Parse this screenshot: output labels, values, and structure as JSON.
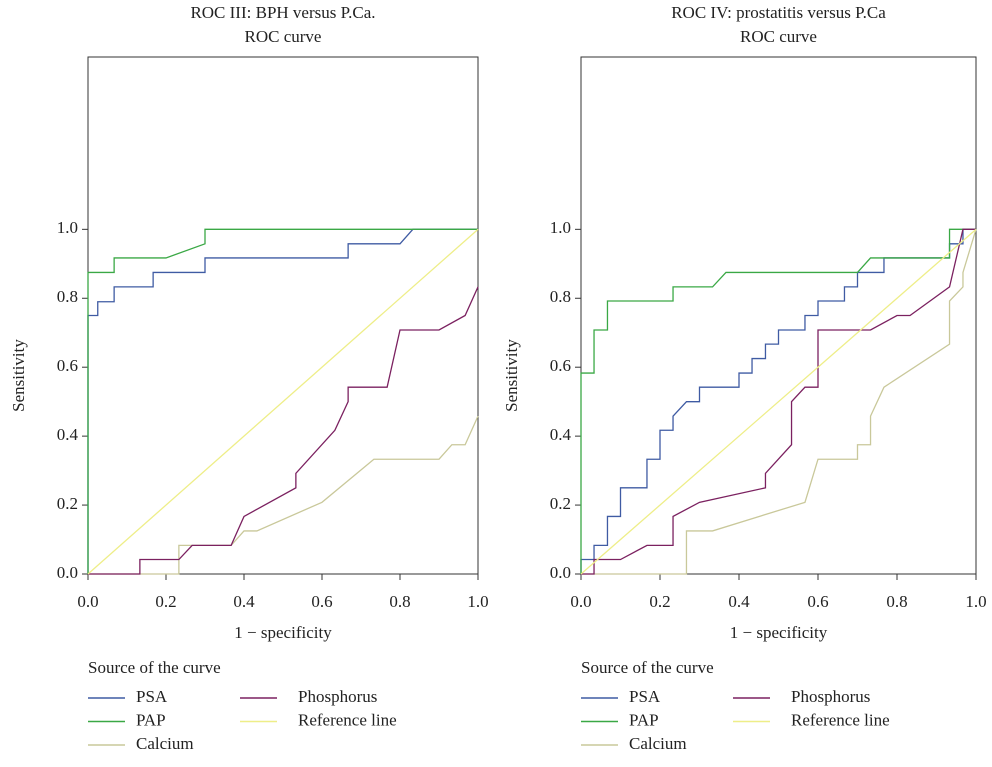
{
  "chart_data": [
    {
      "type": "line",
      "title": "ROC III: BPH versus P.Ca.",
      "subtitle": "ROC curve",
      "x_label": "1 − specificity",
      "y_label": "Sensitivity",
      "legend_title": "Source of the curve",
      "xlim": [
        0,
        1
      ],
      "ylim": [
        0,
        1.5
      ],
      "xticks": [
        {
          "value": 0,
          "label": "0.0"
        },
        0.2,
        0.4,
        0.6,
        0.8,
        {
          "value": 1,
          "label": "1.0"
        }
      ],
      "yticks": [
        {
          "value": 0,
          "label": "0.0"
        },
        0.2,
        0.4,
        0.6,
        0.8,
        {
          "value": 1,
          "label": "1.0"
        }
      ],
      "series": [
        {
          "name": "PSA",
          "color": "#3f5ba3",
          "x": [
            0,
            0,
            0.025,
            0.025,
            0.067,
            0.067,
            0.167,
            0.167,
            0.3,
            0.3,
            0.667,
            0.667,
            0.8,
            0.833,
            1
          ],
          "values": [
            0,
            0.75,
            0.75,
            0.79,
            0.79,
            0.833,
            0.833,
            0.875,
            0.875,
            0.917,
            0.917,
            0.958,
            0.958,
            1,
            1
          ]
        },
        {
          "name": "PAP",
          "color": "#3aa845",
          "x": [
            0,
            0,
            0.067,
            0.067,
            0.2,
            0.3,
            0.3,
            1
          ],
          "values": [
            0,
            0.875,
            0.875,
            0.917,
            0.917,
            0.958,
            1,
            1
          ]
        },
        {
          "name": "Calcium",
          "color": "#c9c89a",
          "x": [
            0,
            0.233,
            0.233,
            0.367,
            0.4,
            0.433,
            0.6,
            0.733,
            0.9,
            0.933,
            0.967,
            1
          ],
          "values": [
            0,
            0,
            0.083,
            0.083,
            0.125,
            0.125,
            0.208,
            0.333,
            0.333,
            0.375,
            0.375,
            0.458
          ]
        },
        {
          "name": "Phosphorus",
          "color": "#7b2160",
          "x": [
            0,
            0.133,
            0.133,
            0.233,
            0.267,
            0.367,
            0.4,
            0.533,
            0.533,
            0.633,
            0.667,
            0.667,
            0.767,
            0.8,
            0.9,
            0.967,
            1
          ],
          "values": [
            0,
            0,
            0.042,
            0.042,
            0.083,
            0.083,
            0.167,
            0.25,
            0.292,
            0.417,
            0.5,
            0.542,
            0.542,
            0.708,
            0.708,
            0.75,
            0.833
          ]
        },
        {
          "name": "Reference line",
          "color": "#eeee88",
          "x": [
            0,
            1
          ],
          "values": [
            0,
            1
          ]
        }
      ]
    },
    {
      "type": "line",
      "title": "ROC IV: prostatitis versus P.Ca",
      "subtitle": "ROC curve",
      "x_label": "1 − specificity",
      "y_label": "Sensitivity",
      "legend_title": "Source of the curve",
      "xlim": [
        0,
        1
      ],
      "ylim": [
        0,
        1.5
      ],
      "xticks": [
        {
          "value": 0,
          "label": "0.0"
        },
        0.2,
        0.4,
        0.6,
        0.8,
        {
          "value": 1,
          "label": "1.0"
        }
      ],
      "yticks": [
        {
          "value": 0,
          "label": "0.0"
        },
        0.2,
        0.4,
        0.6,
        0.8,
        {
          "value": 1,
          "label": "1.0"
        }
      ],
      "series": [
        {
          "name": "PSA",
          "color": "#3f5ba3",
          "x": [
            0,
            0,
            0.033,
            0.033,
            0.067,
            0.067,
            0.1,
            0.1,
            0.167,
            0.167,
            0.2,
            0.2,
            0.233,
            0.233,
            0.267,
            0.3,
            0.3,
            0.4,
            0.4,
            0.433,
            0.433,
            0.467,
            0.467,
            0.5,
            0.5,
            0.567,
            0.567,
            0.6,
            0.6,
            0.667,
            0.667,
            0.7,
            0.7,
            0.767,
            0.767,
            0.933,
            0.933,
            0.967,
            0.967,
            1
          ],
          "values": [
            0,
            0.042,
            0.042,
            0.083,
            0.083,
            0.167,
            0.167,
            0.25,
            0.25,
            0.333,
            0.333,
            0.417,
            0.417,
            0.458,
            0.5,
            0.5,
            0.542,
            0.542,
            0.583,
            0.583,
            0.625,
            0.625,
            0.667,
            0.667,
            0.708,
            0.708,
            0.75,
            0.75,
            0.792,
            0.792,
            0.833,
            0.833,
            0.875,
            0.875,
            0.917,
            0.917,
            0.958,
            0.958,
            1,
            1
          ]
        },
        {
          "name": "PAP",
          "color": "#3aa845",
          "x": [
            0,
            0,
            0.033,
            0.033,
            0.067,
            0.067,
            0.233,
            0.233,
            0.333,
            0.367,
            0.7,
            0.733,
            0.933,
            0.933,
            1
          ],
          "values": [
            0,
            0.583,
            0.583,
            0.708,
            0.708,
            0.792,
            0.792,
            0.833,
            0.833,
            0.875,
            0.875,
            0.917,
            0.917,
            1,
            1
          ]
        },
        {
          "name": "Calcium",
          "color": "#c9c89a",
          "x": [
            0,
            0.267,
            0.267,
            0.333,
            0.567,
            0.6,
            0.7,
            0.7,
            0.733,
            0.733,
            0.767,
            0.933,
            0.933,
            0.967,
            0.967,
            1
          ],
          "values": [
            0,
            0,
            0.125,
            0.125,
            0.208,
            0.333,
            0.333,
            0.375,
            0.375,
            0.458,
            0.542,
            0.667,
            0.792,
            0.833,
            0.875,
            1
          ]
        },
        {
          "name": "Phosphorus",
          "color": "#7b2160",
          "x": [
            0,
            0.033,
            0.033,
            0.1,
            0.167,
            0.233,
            0.233,
            0.3,
            0.467,
            0.467,
            0.533,
            0.533,
            0.567,
            0.6,
            0.6,
            0.733,
            0.8,
            0.833,
            0.933,
            0.967,
            1
          ],
          "values": [
            0,
            0,
            0.042,
            0.042,
            0.083,
            0.083,
            0.167,
            0.208,
            0.25,
            0.292,
            0.375,
            0.5,
            0.542,
            0.542,
            0.708,
            0.708,
            0.75,
            0.75,
            0.833,
            1,
            1
          ]
        },
        {
          "name": "Reference line",
          "color": "#eeee88",
          "x": [
            0,
            1
          ],
          "values": [
            0,
            1
          ]
        }
      ]
    }
  ]
}
